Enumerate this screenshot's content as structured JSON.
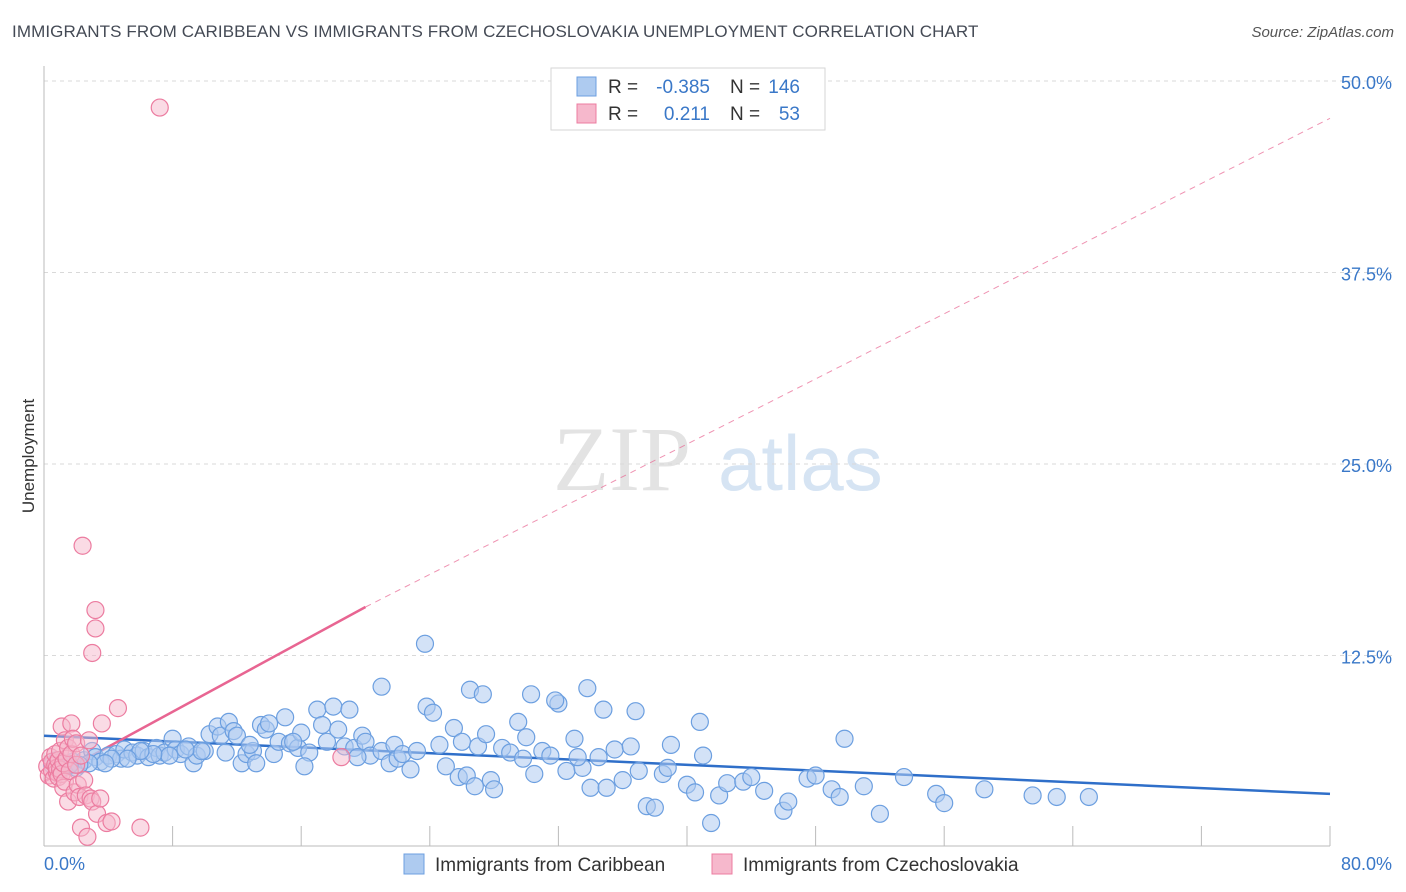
{
  "header": {
    "title": "IMMIGRANTS FROM CARIBBEAN VS IMMIGRANTS FROM CZECHOSLOVAKIA UNEMPLOYMENT CORRELATION CHART",
    "source": "Source: ZipAtlas.com"
  },
  "watermark": {
    "zip": "ZIP",
    "atlas": "atlas"
  },
  "legend_stats": [
    {
      "r_label": "R =",
      "r_value": "-0.385",
      "n_label": "N =",
      "n_value": "146"
    },
    {
      "r_label": "R =",
      "r_value": "0.211",
      "n_label": "N =",
      "n_value": "53"
    }
  ],
  "colors": {
    "blue_fill": "#aecbf0",
    "blue_stroke": "#6c9fe0",
    "blue_line": "#2f6fc9",
    "pink_fill": "#f6b8cc",
    "pink_stroke": "#ec7ca0",
    "pink_line": "#e86592",
    "axis_text": "#3a78c8",
    "grid": "#d9d9d9"
  },
  "chart_data": {
    "type": "scatter",
    "title": "IMMIGRANTS FROM CARIBBEAN VS IMMIGRANTS FROM CZECHOSLOVAKIA UNEMPLOYMENT CORRELATION CHART",
    "xlabel": "",
    "ylabel": "Unemployment",
    "xlim": [
      0,
      80
    ],
    "ylim": [
      0,
      50
    ],
    "x_tick_labels": [
      "0.0%",
      "80.0%"
    ],
    "y_ticks": [
      12.5,
      25.0,
      37.5,
      50.0
    ],
    "y_tick_labels": [
      "12.5%",
      "25.0%",
      "37.5%",
      "50.0%"
    ],
    "legend_position": "bottom-center",
    "series": [
      {
        "name": "Immigrants from Caribbean",
        "color": "blue",
        "r": -0.385,
        "n": 146,
        "trend": {
          "x0": 0,
          "y0": 7.2,
          "x1": 80,
          "y1": 3.4
        },
        "points": [
          [
            0.5,
            5.3
          ],
          [
            0.8,
            5.6
          ],
          [
            1.0,
            5.0
          ],
          [
            1.2,
            5.4
          ],
          [
            1.5,
            5.2
          ],
          [
            1.8,
            5.5
          ],
          [
            2.0,
            5.1
          ],
          [
            2.5,
            5.6
          ],
          [
            3.0,
            6.2
          ],
          [
            3.2,
            5.8
          ],
          [
            3.5,
            5.5
          ],
          [
            4.0,
            5.9
          ],
          [
            4.5,
            6.0
          ],
          [
            4.8,
            5.7
          ],
          [
            5.0,
            6.3
          ],
          [
            5.5,
            6.1
          ],
          [
            5.8,
            5.9
          ],
          [
            6.2,
            6.2
          ],
          [
            6.5,
            5.8
          ],
          [
            7.0,
            6.4
          ],
          [
            7.2,
            5.9
          ],
          [
            7.5,
            6.1
          ],
          [
            8.0,
            7.0
          ],
          [
            8.2,
            6.3
          ],
          [
            8.5,
            6.0
          ],
          [
            9.0,
            6.5
          ],
          [
            9.3,
            5.4
          ],
          [
            9.5,
            5.9
          ],
          [
            10.0,
            6.2
          ],
          [
            10.3,
            7.3
          ],
          [
            10.8,
            7.8
          ],
          [
            11.0,
            7.2
          ],
          [
            11.5,
            8.1
          ],
          [
            11.8,
            7.5
          ],
          [
            12.0,
            7.2
          ],
          [
            12.3,
            5.4
          ],
          [
            12.6,
            6.0
          ],
          [
            13.0,
            6.2
          ],
          [
            13.5,
            7.9
          ],
          [
            13.8,
            7.6
          ],
          [
            14.0,
            8.0
          ],
          [
            14.3,
            6.0
          ],
          [
            14.6,
            6.8
          ],
          [
            15.0,
            8.4
          ],
          [
            15.3,
            6.7
          ],
          [
            15.8,
            6.4
          ],
          [
            16.0,
            7.4
          ],
          [
            16.5,
            6.1
          ],
          [
            17.0,
            8.9
          ],
          [
            17.3,
            7.9
          ],
          [
            17.6,
            6.8
          ],
          [
            18.0,
            9.1
          ],
          [
            18.3,
            7.6
          ],
          [
            18.7,
            6.5
          ],
          [
            19.0,
            8.9
          ],
          [
            19.3,
            6.4
          ],
          [
            19.8,
            7.2
          ],
          [
            20.0,
            6.8
          ],
          [
            20.3,
            5.9
          ],
          [
            19.5,
            5.8
          ],
          [
            21.0,
            6.2
          ],
          [
            21.5,
            5.4
          ],
          [
            21.8,
            6.6
          ],
          [
            22.0,
            5.7
          ],
          [
            22.3,
            6.0
          ],
          [
            22.8,
            5.0
          ],
          [
            23.2,
            6.2
          ],
          [
            23.8,
            9.1
          ],
          [
            24.2,
            8.7
          ],
          [
            24.6,
            6.6
          ],
          [
            25.0,
            5.2
          ],
          [
            25.5,
            7.7
          ],
          [
            25.8,
            4.5
          ],
          [
            26.0,
            6.8
          ],
          [
            26.3,
            4.6
          ],
          [
            26.8,
            3.9
          ],
          [
            27.0,
            6.5
          ],
          [
            27.5,
            7.3
          ],
          [
            27.8,
            4.3
          ],
          [
            28.0,
            3.7
          ],
          [
            28.5,
            6.4
          ],
          [
            29.0,
            6.1
          ],
          [
            29.5,
            8.1
          ],
          [
            29.8,
            5.7
          ],
          [
            30.0,
            7.1
          ],
          [
            30.5,
            4.7
          ],
          [
            31.0,
            6.2
          ],
          [
            31.5,
            5.9
          ],
          [
            32.0,
            9.3
          ],
          [
            32.5,
            4.9
          ],
          [
            33.0,
            7.0
          ],
          [
            33.5,
            5.1
          ],
          [
            34.0,
            3.8
          ],
          [
            34.5,
            5.8
          ],
          [
            35.0,
            3.8
          ],
          [
            35.5,
            6.3
          ],
          [
            36.0,
            4.3
          ],
          [
            36.5,
            6.5
          ],
          [
            37.0,
            4.9
          ],
          [
            37.5,
            2.6
          ],
          [
            38.0,
            2.5
          ],
          [
            38.5,
            4.7
          ],
          [
            39.0,
            6.6
          ],
          [
            40.0,
            4.0
          ],
          [
            40.5,
            3.5
          ],
          [
            40.8,
            8.1
          ],
          [
            41.0,
            5.9
          ],
          [
            41.5,
            1.5
          ],
          [
            42.0,
            3.3
          ],
          [
            42.5,
            4.1
          ],
          [
            43.5,
            4.2
          ],
          [
            44.0,
            4.5
          ],
          [
            46.0,
            2.3
          ],
          [
            46.3,
            2.9
          ],
          [
            47.5,
            4.4
          ],
          [
            49.0,
            3.7
          ],
          [
            49.5,
            3.2
          ],
          [
            49.8,
            7.0
          ],
          [
            51.0,
            3.9
          ],
          [
            52.0,
            2.1
          ],
          [
            53.5,
            4.5
          ],
          [
            55.5,
            3.4
          ],
          [
            56.0,
            2.8
          ],
          [
            58.5,
            3.7
          ],
          [
            61.5,
            3.3
          ],
          [
            63.0,
            3.2
          ],
          [
            65.0,
            3.2
          ],
          [
            26.5,
            10.2
          ],
          [
            27.3,
            9.9
          ],
          [
            30.3,
            9.9
          ],
          [
            31.8,
            9.5
          ],
          [
            33.8,
            10.3
          ],
          [
            23.7,
            13.2
          ],
          [
            21.0,
            10.4
          ],
          [
            16.2,
            5.2
          ],
          [
            15.5,
            6.8
          ],
          [
            13.2,
            5.4
          ],
          [
            12.8,
            6.6
          ],
          [
            11.3,
            6.1
          ],
          [
            9.8,
            6.2
          ],
          [
            8.8,
            6.3
          ],
          [
            7.8,
            5.9
          ],
          [
            6.8,
            6.0
          ],
          [
            6.0,
            6.2
          ],
          [
            5.2,
            5.7
          ],
          [
            4.2,
            5.7
          ],
          [
            3.8,
            5.4
          ],
          [
            2.8,
            5.4
          ],
          [
            2.2,
            5.3
          ],
          [
            1.6,
            5.3
          ],
          [
            44.8,
            3.6
          ],
          [
            48.0,
            4.6
          ],
          [
            38.8,
            5.1
          ],
          [
            36.8,
            8.8
          ],
          [
            34.8,
            8.9
          ],
          [
            33.2,
            5.8
          ]
        ]
      },
      {
        "name": "Immigrants from Czechoslovakia",
        "color": "pink",
        "r": 0.211,
        "n": 53,
        "trend_solid": {
          "x0": 0,
          "y0": 4.2,
          "x1": 20.0,
          "y1": 15.6
        },
        "trend_dashed": {
          "x0": 20.0,
          "y0": 15.6,
          "x1": 80,
          "y1": 47.5
        },
        "points": [
          [
            0.2,
            5.2
          ],
          [
            0.3,
            4.6
          ],
          [
            0.4,
            5.8
          ],
          [
            0.5,
            4.9
          ],
          [
            0.5,
            5.5
          ],
          [
            0.6,
            4.4
          ],
          [
            0.7,
            5.3
          ],
          [
            0.7,
            6.0
          ],
          [
            0.8,
            4.8
          ],
          [
            0.8,
            5.1
          ],
          [
            0.9,
            5.6
          ],
          [
            0.9,
            4.5
          ],
          [
            1.0,
            6.2
          ],
          [
            1.0,
            5.0
          ],
          [
            1.1,
            4.7
          ],
          [
            1.1,
            7.8
          ],
          [
            1.2,
            5.4
          ],
          [
            1.2,
            3.8
          ],
          [
            1.3,
            6.9
          ],
          [
            1.3,
            4.2
          ],
          [
            1.4,
            5.7
          ],
          [
            1.5,
            6.4
          ],
          [
            1.5,
            2.9
          ],
          [
            1.6,
            4.9
          ],
          [
            1.7,
            6.0
          ],
          [
            1.7,
            8.0
          ],
          [
            1.8,
            7.0
          ],
          [
            1.9,
            3.5
          ],
          [
            2.0,
            5.3
          ],
          [
            2.0,
            6.7
          ],
          [
            2.1,
            4.0
          ],
          [
            2.2,
            3.2
          ],
          [
            2.3,
            5.9
          ],
          [
            2.3,
            1.2
          ],
          [
            2.4,
            19.6
          ],
          [
            2.5,
            4.3
          ],
          [
            2.6,
            3.3
          ],
          [
            2.7,
            0.6
          ],
          [
            2.8,
            6.9
          ],
          [
            2.9,
            3.1
          ],
          [
            3.0,
            12.6
          ],
          [
            3.0,
            2.9
          ],
          [
            3.2,
            15.4
          ],
          [
            3.2,
            14.2
          ],
          [
            3.3,
            2.1
          ],
          [
            3.5,
            3.1
          ],
          [
            3.6,
            8.0
          ],
          [
            3.9,
            1.5
          ],
          [
            4.2,
            1.6
          ],
          [
            4.6,
            9.0
          ],
          [
            6.0,
            1.2
          ],
          [
            7.2,
            48.2
          ],
          [
            18.5,
            5.8
          ]
        ]
      }
    ]
  }
}
